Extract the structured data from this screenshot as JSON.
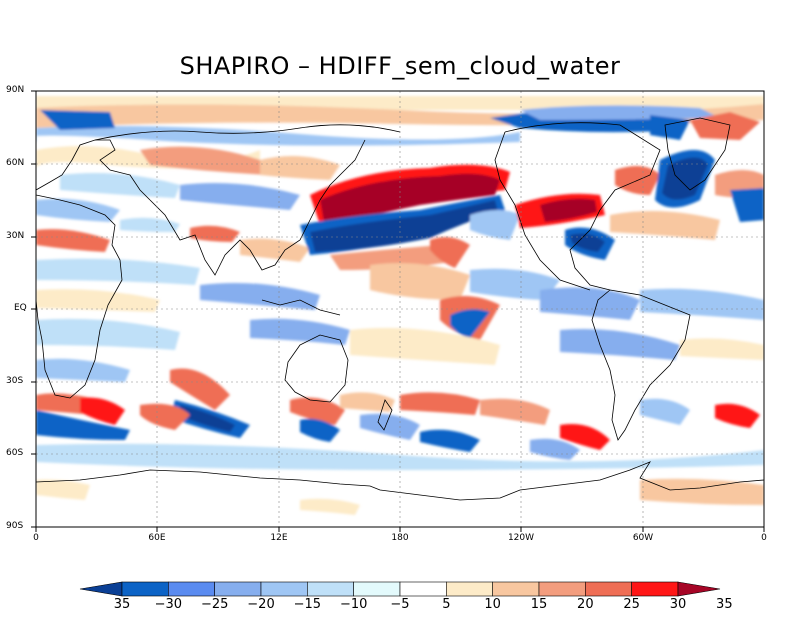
{
  "title": "SHAPIRO – HDIFF_sem_cloud_water",
  "axes": {
    "y_labels": [
      "90N",
      "60N",
      "30N",
      "EQ",
      "30S",
      "60S",
      "90S"
    ],
    "x_labels": [
      "0",
      "60E",
      "12E",
      "180",
      "120W",
      "60W",
      "0"
    ]
  },
  "colorbar": {
    "labels": [
      "35",
      "−30",
      "−25",
      "−20",
      "−15",
      "−10",
      "−5",
      "5",
      "10",
      "15",
      "20",
      "25",
      "30",
      "35"
    ],
    "colors": [
      "#0a3f95",
      "#0c63c6",
      "#5a8bf0",
      "#86aeee",
      "#9fc6f4",
      "#bfe0f8",
      "#e3fafc",
      "#ffffff",
      "#fdebc8",
      "#f8c7a0",
      "#f39d7e",
      "#ef6e55",
      "#ff1616",
      "#a60526"
    ],
    "end_low": "#0a3f95",
    "end_high": "#a60526"
  },
  "map_data": {
    "type": "global_field_anomaly",
    "lat_range": [
      -90,
      90
    ],
    "lon_range": [
      0,
      360
    ],
    "features": [
      {
        "name": "north-pacific-positive-band",
        "sign": "positive",
        "strength": "strong"
      },
      {
        "name": "north-pacific-negative-band",
        "sign": "negative",
        "strength": "strong"
      },
      {
        "name": "north-atlantic-positive",
        "sign": "positive",
        "strength": "strong"
      },
      {
        "name": "greenland-negative",
        "sign": "negative",
        "strength": "strong"
      },
      {
        "name": "southern-ocean-dipoles",
        "sign": "mixed",
        "strength": "moderate"
      }
    ]
  }
}
